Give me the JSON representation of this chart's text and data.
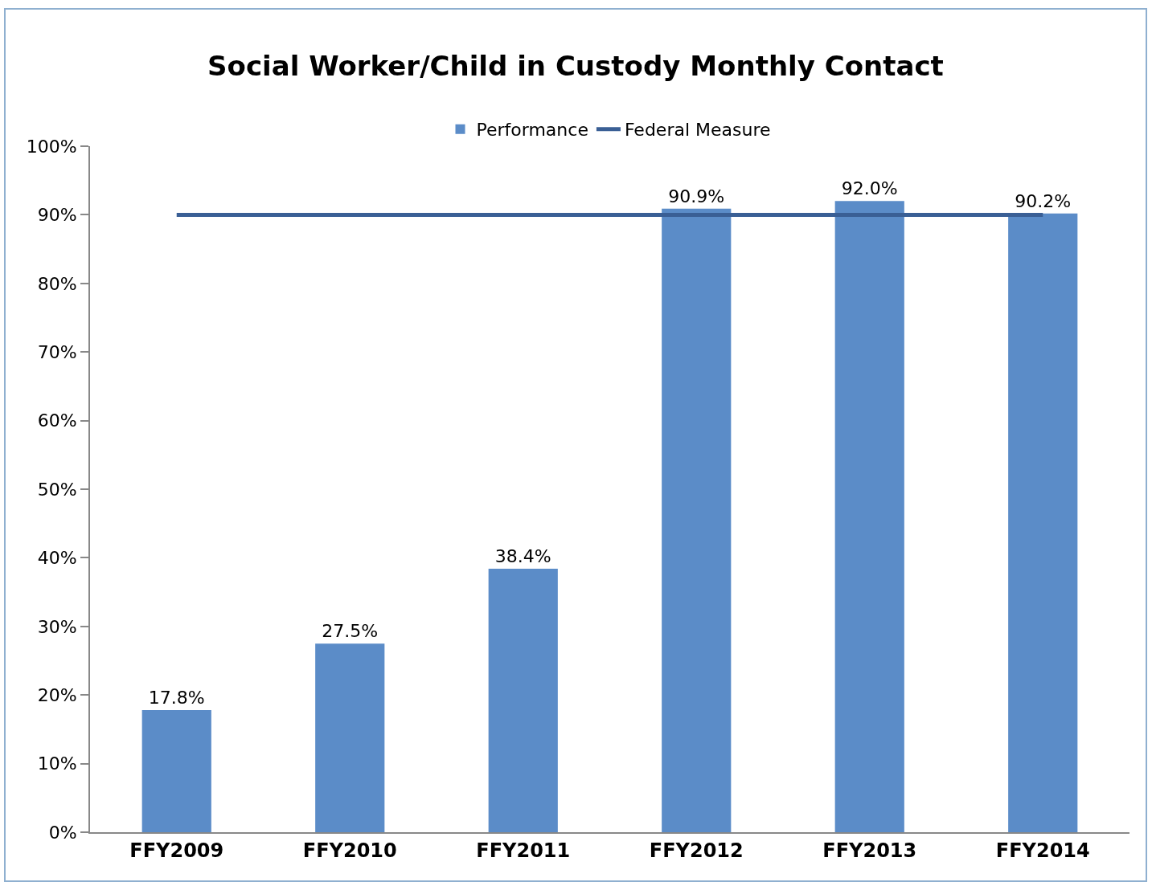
{
  "chart_data": {
    "type": "bar",
    "title": "Social Worker/Child in Custody Monthly Contact",
    "categories": [
      "FFY2009",
      "FFY2010",
      "FFY2011",
      "FFY2012",
      "FFY2013",
      "FFY2014"
    ],
    "series": [
      {
        "name": "Performance",
        "color": "#5b8cc8",
        "values": [
          17.8,
          27.5,
          38.4,
          90.9,
          92.0,
          90.2
        ],
        "value_labels": [
          "17.8%",
          "27.5%",
          "38.4%",
          "90.9%",
          "92.0%",
          "90.2%"
        ]
      },
      {
        "name": "Federal Measure",
        "type": "line",
        "color": "#3a5f95",
        "values": [
          90,
          90,
          90,
          90,
          90,
          90
        ]
      }
    ],
    "ylim": [
      0,
      100
    ],
    "yticks": [
      {
        "value": 0,
        "label": "0%"
      },
      {
        "value": 10,
        "label": "10%"
      },
      {
        "value": 20,
        "label": "20%"
      },
      {
        "value": 30,
        "label": "30%"
      },
      {
        "value": 40,
        "label": "40%"
      },
      {
        "value": 50,
        "label": "50%"
      },
      {
        "value": 60,
        "label": "60%"
      },
      {
        "value": 70,
        "label": "70%"
      },
      {
        "value": 80,
        "label": "80%"
      },
      {
        "value": 90,
        "label": "90%"
      },
      {
        "value": 100,
        "label": "100%"
      }
    ],
    "grid": false,
    "legend": "top",
    "marker": "none",
    "line_style": "solid"
  }
}
